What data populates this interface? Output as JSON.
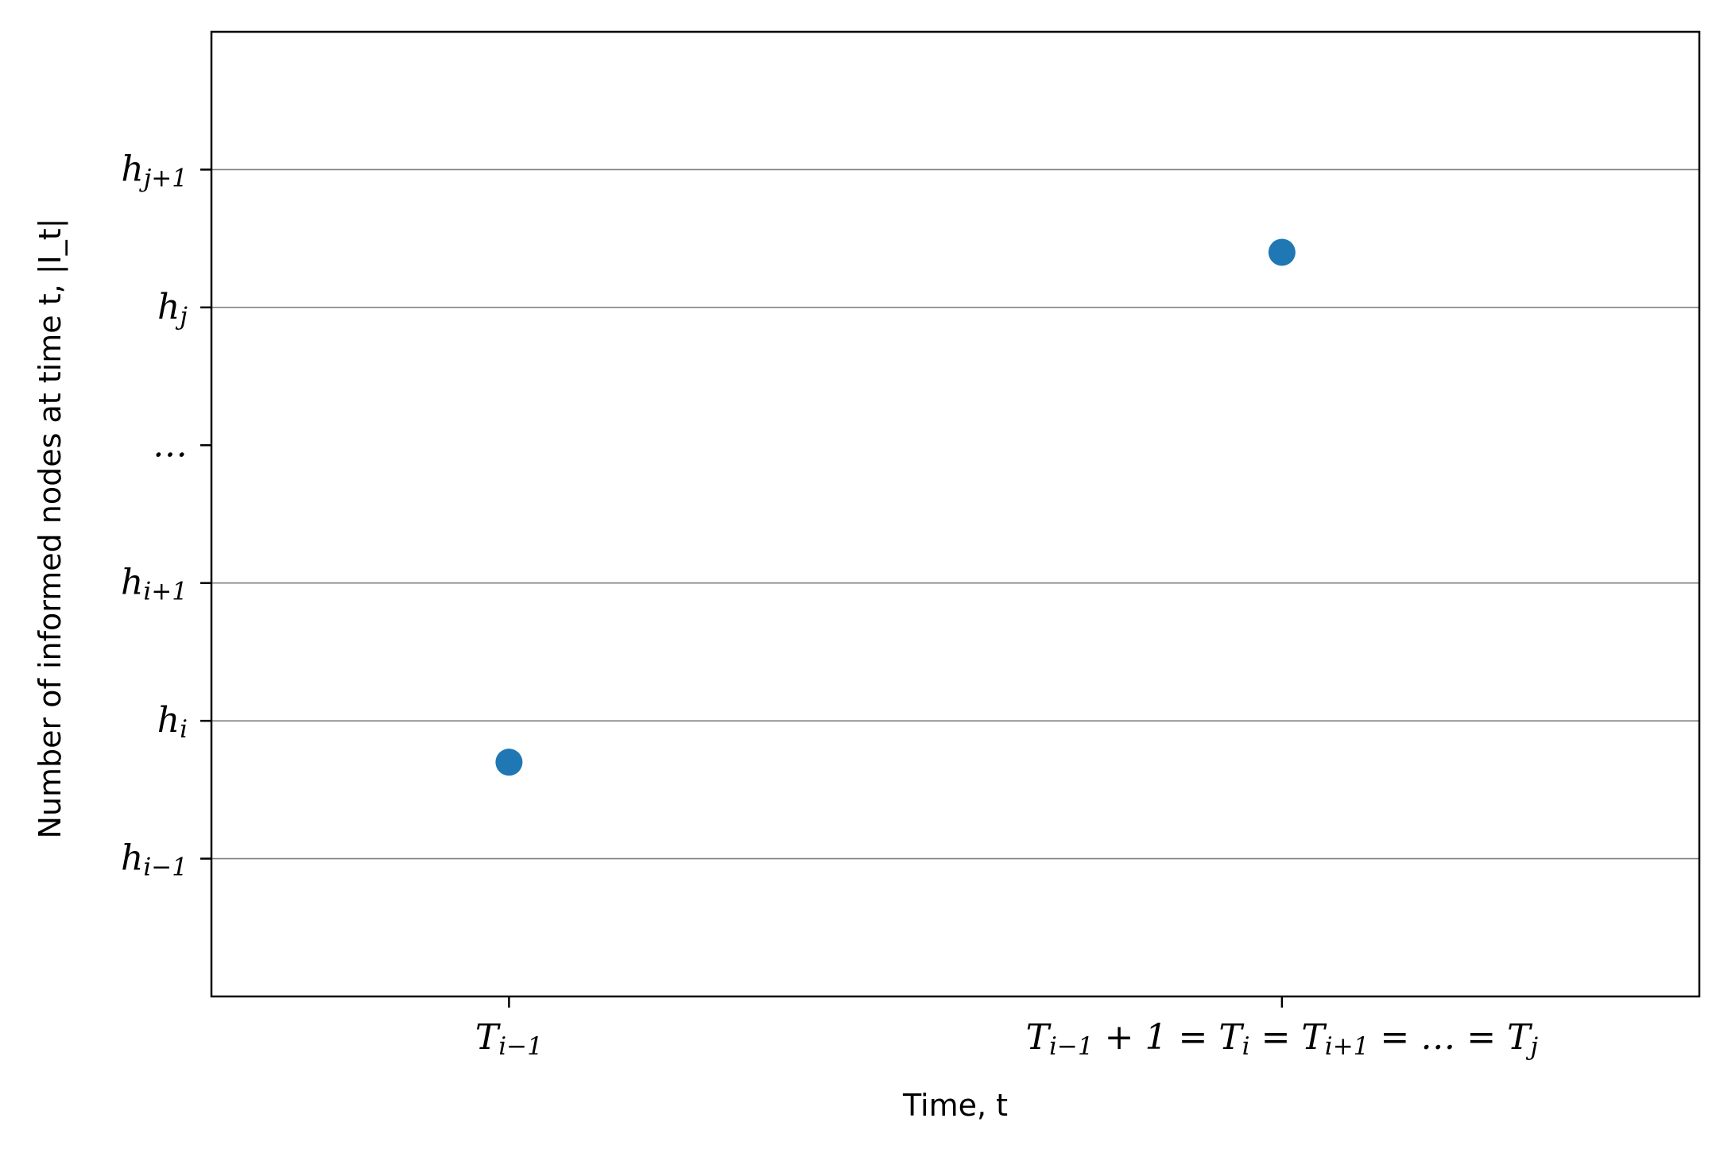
{
  "chart_data": {
    "type": "scatter",
    "title": "",
    "xlabel": "Time, t",
    "ylabel": "Number of informed nodes at time t, |I_t|",
    "x_ticks": [
      {
        "pos": 0,
        "label": "T_{i−1}"
      },
      {
        "pos": 1,
        "label": "T_{i−1} + 1 = T_i = T_{i+1} = … = T_j"
      }
    ],
    "y_ticks": [
      {
        "pos": 1,
        "label": "h_{i−1}",
        "grid": true
      },
      {
        "pos": 2,
        "label": "h_i",
        "grid": true
      },
      {
        "pos": 3,
        "label": "h_{i+1}",
        "grid": true
      },
      {
        "pos": 4,
        "label": "…",
        "grid": false
      },
      {
        "pos": 5,
        "label": "h_j",
        "grid": true
      },
      {
        "pos": 6,
        "label": "h_{j+1}",
        "grid": true
      }
    ],
    "xlim": [
      -0.385,
      1.54
    ],
    "ylim": [
      0,
      7
    ],
    "points": [
      {
        "x": 0,
        "y": 1.7
      },
      {
        "x": 1,
        "y": 5.4
      }
    ],
    "marker_color": "#1f77b4",
    "grid_color": "#808080",
    "grid": "horizontal"
  }
}
